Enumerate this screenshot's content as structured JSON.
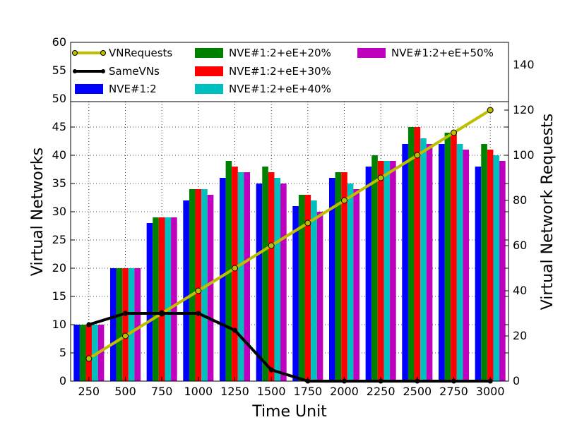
{
  "chart_data": {
    "type": "bar",
    "xlabel": "Time Unit",
    "ylabel": "Virtual Networks",
    "y2label": "Virtual Network Requests",
    "categories": [
      "250",
      "500",
      "750",
      "1000",
      "1250",
      "1500",
      "1750",
      "2000",
      "2250",
      "2500",
      "2750",
      "3000"
    ],
    "ylim": [
      0,
      60
    ],
    "y2lim": [
      0,
      150
    ],
    "yticks": [
      0,
      5,
      10,
      15,
      20,
      25,
      30,
      35,
      40,
      45,
      50,
      55,
      60
    ],
    "y2ticks": [
      0,
      20,
      40,
      60,
      80,
      100,
      120,
      140
    ],
    "grid": true,
    "legend_position": "top",
    "bar_series": [
      {
        "name": "NVE#1:2",
        "color": "#0000ff",
        "values": [
          10,
          20,
          28,
          32,
          36,
          35,
          31,
          36,
          38,
          42,
          42,
          38
        ]
      },
      {
        "name": "NVE#1:2+eE+20%",
        "color": "#008000",
        "values": [
          10,
          20,
          29,
          34,
          39,
          38,
          33,
          37,
          40,
          45,
          44,
          42
        ]
      },
      {
        "name": "NVE#1:2+eE+30%",
        "color": "#ff0000",
        "values": [
          10,
          20,
          29,
          34,
          38,
          37,
          33,
          37,
          39,
          45,
          44,
          41
        ]
      },
      {
        "name": "NVE#1:2+eE+40%",
        "color": "#00bfbf",
        "values": [
          10,
          20,
          29,
          34,
          37,
          36,
          32,
          35,
          39,
          43,
          42,
          40
        ]
      },
      {
        "name": "NVE#1:2+eE+50%",
        "color": "#bf00bf",
        "values": [
          10,
          20,
          29,
          33,
          37,
          35,
          30,
          34,
          39,
          42,
          41,
          39
        ]
      }
    ],
    "line_series": [
      {
        "name": "VNRequests",
        "color": "#bfbf00",
        "axis": "right",
        "values": [
          10,
          20,
          30,
          40,
          50,
          60,
          70,
          80,
          90,
          100,
          110,
          120
        ]
      },
      {
        "name": "SameVNs",
        "color": "#000000",
        "axis": "left",
        "values": [
          10,
          12,
          12,
          12,
          9,
          2,
          0,
          0,
          0,
          0,
          0,
          0
        ]
      }
    ]
  }
}
